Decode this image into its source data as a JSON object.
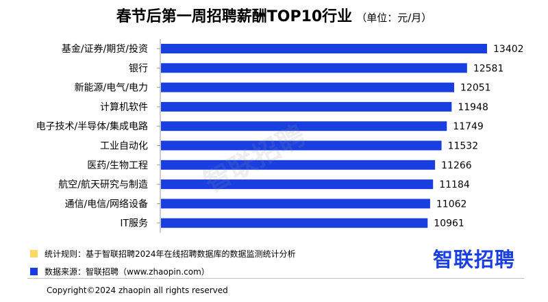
{
  "chart_data": {
    "type": "bar",
    "orientation": "horizontal",
    "title": "春节后第一周招聘薪酬TOP10行业",
    "unit": "（单位：元/月）",
    "categories": [
      "基金/证券/期货/投资",
      "银行",
      "新能源/电气/电力",
      "计算机软件",
      "电子技术/半导体/集成电路",
      "工业自动化",
      "医药/生物工程",
      "航空/航天研究与制造",
      "通信/电信/网络设备",
      "IT服务"
    ],
    "values": [
      13402,
      12581,
      12051,
      11948,
      11749,
      11532,
      11266,
      11184,
      11062,
      10961
    ],
    "xlim": [
      0,
      13402
    ],
    "grid": false,
    "bar_color": "#1a3fe0"
  },
  "notes": [
    {
      "text": "统计规则：基于智联招聘2024年在线招聘数据库的数据监测统计分析",
      "color": "#ffd966"
    },
    {
      "text": "数据来源：智联招聘（www.zhaopin.com）",
      "color": "#1a3fe0"
    }
  ],
  "watermark": "智联招聘",
  "logo": "智联招聘",
  "copyright": "Copyright©2024 zhaopin all rights reserved"
}
